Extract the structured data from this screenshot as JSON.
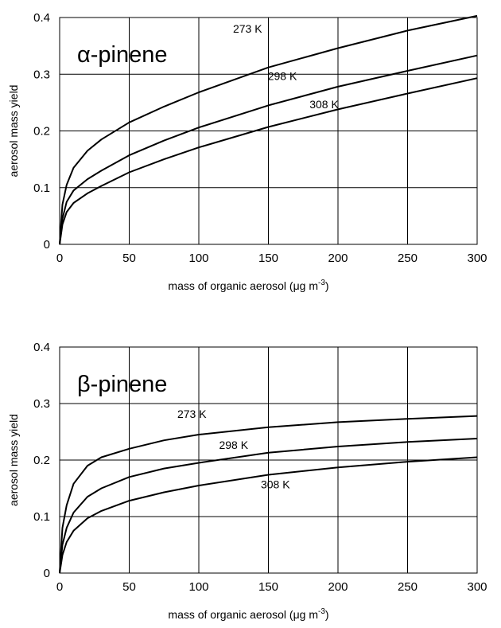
{
  "chart_data": [
    {
      "type": "line",
      "title": "α-pinene",
      "xlabel": "mass of organic aerosol (μg m⁻³)",
      "ylabel": "aerosol mass yield",
      "xlim": [
        0,
        300
      ],
      "ylim": [
        0,
        0.4
      ],
      "x_ticks": [
        "0",
        "50",
        "100",
        "150",
        "200",
        "250",
        "300"
      ],
      "y_ticks": [
        "0",
        "0.1",
        "0.2",
        "0.3",
        "0.4"
      ],
      "grid": true,
      "x": [
        0,
        2,
        5,
        10,
        20,
        30,
        50,
        75,
        100,
        150,
        200,
        250,
        300
      ],
      "series": [
        {
          "name": "273 K",
          "values": [
            0,
            0.07,
            0.105,
            0.135,
            0.165,
            0.185,
            0.215,
            0.243,
            0.268,
            0.312,
            0.346,
            0.377,
            0.403
          ]
        },
        {
          "name": "298 K",
          "values": [
            0,
            0.045,
            0.075,
            0.095,
            0.115,
            0.13,
            0.157,
            0.183,
            0.206,
            0.245,
            0.278,
            0.306,
            0.333
          ]
        },
        {
          "name": "308 K",
          "values": [
            0,
            0.035,
            0.057,
            0.073,
            0.09,
            0.103,
            0.127,
            0.15,
            0.171,
            0.207,
            0.238,
            0.266,
            0.293
          ]
        }
      ],
      "label_anchors": [
        {
          "x": 135,
          "y": 0.373
        },
        {
          "x": 160,
          "y": 0.29
        },
        {
          "x": 190,
          "y": 0.24
        }
      ]
    },
    {
      "type": "line",
      "title": "β-pinene",
      "xlabel": "mass of organic aerosol (μg m⁻³)",
      "ylabel": "aerosol mass yield",
      "xlim": [
        0,
        300
      ],
      "ylim": [
        0,
        0.4
      ],
      "x_ticks": [
        "0",
        "50",
        "100",
        "150",
        "200",
        "250",
        "300"
      ],
      "y_ticks": [
        "0",
        "0.1",
        "0.2",
        "0.3",
        "0.4"
      ],
      "grid": true,
      "x": [
        0,
        2,
        5,
        10,
        20,
        30,
        50,
        75,
        100,
        150,
        200,
        250,
        300
      ],
      "series": [
        {
          "name": "273 K",
          "values": [
            0,
            0.08,
            0.12,
            0.158,
            0.19,
            0.205,
            0.22,
            0.235,
            0.245,
            0.258,
            0.267,
            0.273,
            0.278
          ]
        },
        {
          "name": "298 K",
          "values": [
            0,
            0.05,
            0.08,
            0.107,
            0.135,
            0.15,
            0.17,
            0.185,
            0.195,
            0.213,
            0.224,
            0.232,
            0.238
          ]
        },
        {
          "name": "308 K",
          "values": [
            0,
            0.032,
            0.055,
            0.075,
            0.097,
            0.11,
            0.128,
            0.143,
            0.155,
            0.174,
            0.187,
            0.197,
            0.205
          ]
        }
      ],
      "label_anchors": [
        {
          "x": 95,
          "y": 0.275
        },
        {
          "x": 125,
          "y": 0.22
        },
        {
          "x": 155,
          "y": 0.15
        }
      ]
    }
  ]
}
